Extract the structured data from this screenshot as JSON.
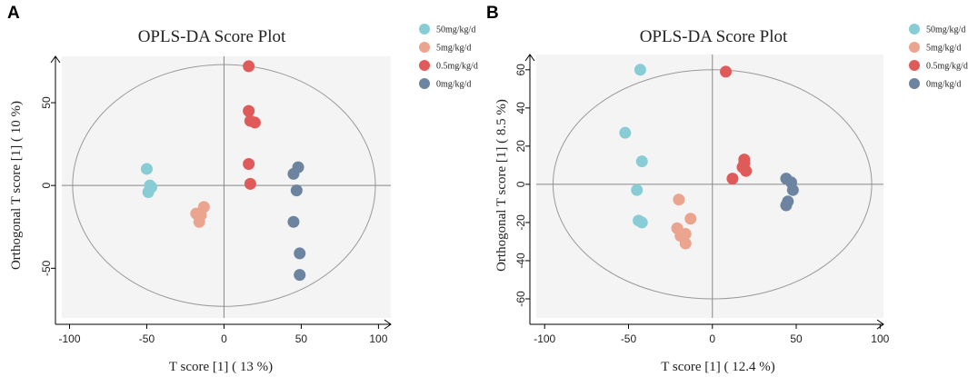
{
  "chart_data": [
    {
      "type": "scatter",
      "panel_label": "A",
      "title": "OPLS-DA Score Plot",
      "xlabel": "T score [1] ( 13 %)",
      "ylabel": "Orthogonal T score [1] ( 10 %)",
      "xlim": [
        -105,
        108
      ],
      "ylim": [
        -80,
        78
      ],
      "xticks": [
        -100,
        -50,
        0,
        50,
        100
      ],
      "yticks": [
        -50,
        0,
        50
      ],
      "ellipse": {
        "rx": 98,
        "ry": 73
      },
      "series": [
        {
          "name": "50mg/kg/d",
          "color": "#88cdd6",
          "points": [
            [
              -50,
              10
            ],
            [
              -49,
              -4
            ],
            [
              -48,
              0
            ],
            [
              -47,
              -1
            ]
          ]
        },
        {
          "name": "5mg/kg/d",
          "color": "#eba48e",
          "points": [
            [
              -18,
              -17
            ],
            [
              -16,
              -22
            ],
            [
              -15,
              -18
            ],
            [
              -13,
              -13
            ]
          ]
        },
        {
          "name": "0.5mg/kg/d",
          "color": "#e05a5a",
          "points": [
            [
              16,
              72
            ],
            [
              16,
              45
            ],
            [
              17,
              39
            ],
            [
              20,
              38
            ],
            [
              16,
              13
            ],
            [
              17,
              1
            ]
          ]
        },
        {
          "name": "0mg/kg/d",
          "color": "#6c84a0",
          "points": [
            [
              45,
              7
            ],
            [
              48,
              11
            ],
            [
              47,
              -3
            ],
            [
              45,
              -22
            ],
            [
              49,
              -41
            ],
            [
              49,
              -54
            ]
          ]
        }
      ]
    },
    {
      "type": "scatter",
      "panel_label": "B",
      "title": "OPLS-DA Score Plot",
      "xlabel": "T score [1] ( 12.4 %)",
      "ylabel": "Orthogonal T score [1] ( 8.5 %)",
      "xlim": [
        -105,
        102
      ],
      "ylim": [
        -70,
        68
      ],
      "xticks": [
        -100,
        -50,
        0,
        50,
        100
      ],
      "yticks": [
        -60,
        -40,
        -20,
        0,
        20,
        40,
        60
      ],
      "ellipse": {
        "rx": 95,
        "ry": 60
      },
      "series": [
        {
          "name": "50mg/kg/d",
          "color": "#88cdd6",
          "points": [
            [
              -43,
              60
            ],
            [
              -52,
              27
            ],
            [
              -42,
              12
            ],
            [
              -45,
              -3
            ],
            [
              -44,
              -19
            ],
            [
              -42,
              -20
            ]
          ]
        },
        {
          "name": "5mg/kg/d",
          "color": "#eba48e",
          "points": [
            [
              -20,
              -8
            ],
            [
              -13,
              -18
            ],
            [
              -21,
              -23
            ],
            [
              -19,
              -27
            ],
            [
              -16,
              -26
            ],
            [
              -16,
              -31
            ]
          ]
        },
        {
          "name": "0.5mg/kg/d",
          "color": "#e05a5a",
          "points": [
            [
              8,
              59
            ],
            [
              19,
              13
            ],
            [
              19,
              11
            ],
            [
              18,
              9
            ],
            [
              20,
              7
            ],
            [
              12,
              3
            ]
          ]
        },
        {
          "name": "0mg/kg/d",
          "color": "#6c84a0",
          "points": [
            [
              44,
              3
            ],
            [
              47,
              1
            ],
            [
              48,
              -3
            ],
            [
              45,
              -9
            ],
            [
              44,
              -11
            ]
          ]
        }
      ]
    }
  ]
}
